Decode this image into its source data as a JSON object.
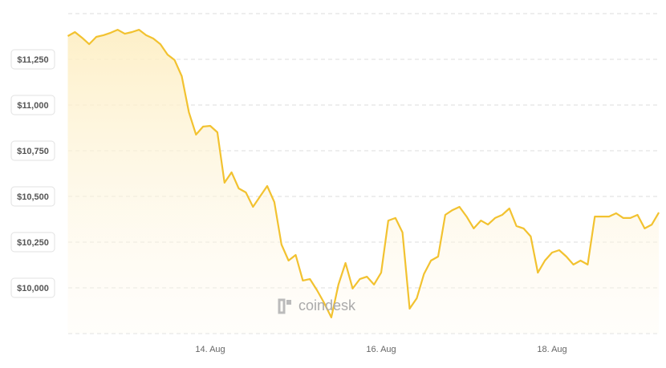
{
  "chart_data": {
    "type": "area",
    "watermark": "coindesk",
    "categories": [
      null,
      null,
      null,
      null,
      null,
      null,
      null,
      null,
      null,
      null,
      null,
      null,
      null,
      null,
      null,
      null,
      null,
      null,
      null,
      null,
      "14. Aug",
      null,
      null,
      null,
      null,
      null,
      null,
      null,
      null,
      null,
      null,
      null,
      null,
      null,
      null,
      null,
      null,
      null,
      null,
      null,
      null,
      null,
      null,
      null,
      "16. Aug",
      null,
      null,
      null,
      null,
      null,
      null,
      null,
      null,
      null,
      null,
      null,
      null,
      null,
      null,
      null,
      null,
      null,
      null,
      null,
      null,
      null,
      null,
      null,
      "18. Aug",
      null,
      null,
      null,
      null,
      null,
      null,
      null,
      null,
      null,
      null,
      null,
      null,
      null,
      null,
      null
    ],
    "values": [
      11377,
      11399,
      11368,
      11333,
      11373,
      11382,
      11395,
      11412,
      11390,
      11399,
      11412,
      11382,
      11364,
      11333,
      11276,
      11246,
      11158,
      10961,
      10838,
      10882,
      10886,
      10851,
      10575,
      10632,
      10544,
      10522,
      10443,
      10500,
      10557,
      10469,
      10237,
      10149,
      10180,
      10040,
      10048,
      9987,
      9917,
      9838,
      10018,
      10136,
      9996,
      10048,
      10061,
      10018,
      10083,
      10368,
      10382,
      10303,
      9886,
      9943,
      10075,
      10149,
      10171,
      10399,
      10425,
      10443,
      10390,
      10325,
      10368,
      10346,
      10382,
      10399,
      10434,
      10338,
      10325,
      10281,
      10083,
      10149,
      10193,
      10206,
      10171,
      10127,
      10149,
      10127,
      10390,
      10390,
      10390,
      10408,
      10382,
      10382,
      10399,
      10325,
      10346,
      10412
    ],
    "color": "#f2c230",
    "ylim": [
      9750,
      11500
    ],
    "yticks": [
      {
        "value": 10000,
        "label": "$10,000"
      },
      {
        "value": 10250,
        "label": "$10,250"
      },
      {
        "value": 10500,
        "label": "$10,500"
      },
      {
        "value": 10750,
        "label": "$10,750"
      },
      {
        "value": 11000,
        "label": "$11,000"
      },
      {
        "value": 11250,
        "label": "$11,250"
      }
    ],
    "grid": true
  }
}
